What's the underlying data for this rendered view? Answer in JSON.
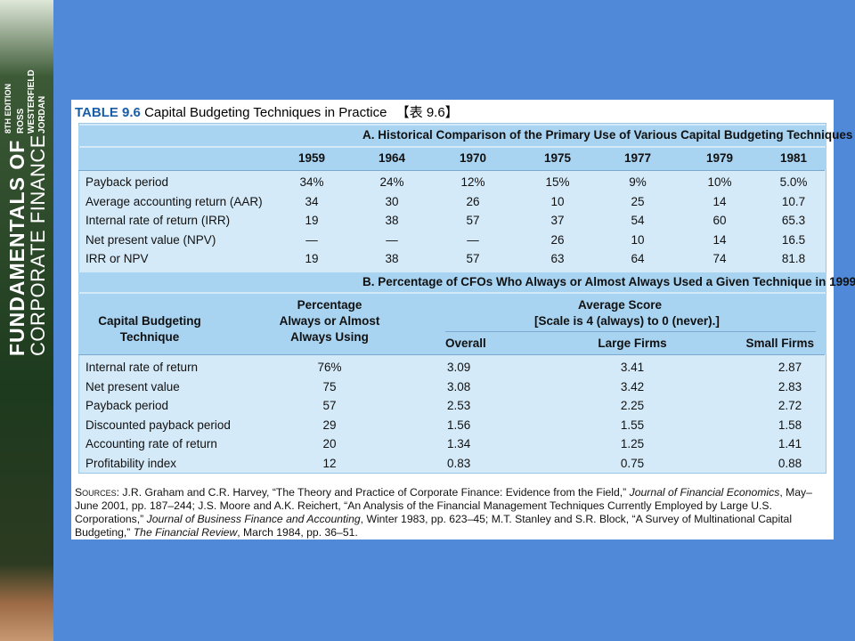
{
  "sidebar": {
    "title1": "FUNDAMENTALS OF",
    "title2": "CORPORATE FINANCE",
    "edition": "8TH EDITION",
    "authors": [
      "ROSS",
      "WESTERFIELD",
      "JORDAN"
    ]
  },
  "table": {
    "label": "TABLE 9.6",
    "title": "Capital Budgeting Techniques in Practice",
    "tag": "【表 9.6】",
    "section_a": {
      "heading": "A. Historical Comparison of the Primary Use of Various Capital Budgeting Techniques",
      "years": [
        "1959",
        "1964",
        "1970",
        "1975",
        "1977",
        "1979",
        "1981"
      ],
      "rows": [
        [
          "Payback period",
          "34%",
          "24%",
          "12%",
          "15%",
          "9%",
          "10%",
          "5.0%"
        ],
        [
          "Average accounting return (AAR)",
          "34",
          "30",
          "26",
          "10",
          "25",
          "14",
          "10.7"
        ],
        [
          "Internal rate of return (IRR)",
          "19",
          "38",
          "57",
          "37",
          "54",
          "60",
          "65.3"
        ],
        [
          "Net present value (NPV)",
          "—",
          "—",
          "—",
          "26",
          "10",
          "14",
          "16.5"
        ],
        [
          "IRR or NPV",
          "19",
          "38",
          "57",
          "63",
          "64",
          "74",
          "81.8"
        ]
      ]
    },
    "section_b": {
      "heading": "B. Percentage of CFOs Who Always or Almost Always Used a Given Technique in 1999",
      "col1": [
        "Capital Budgeting",
        "Technique"
      ],
      "col2": [
        "Percentage",
        "Always or Almost",
        "Always Using"
      ],
      "avg": "Average Score",
      "scale": "[Scale is 4 (always) to 0 (never).]",
      "sub": [
        "Overall",
        "Large Firms",
        "Small Firms"
      ],
      "rows": [
        [
          "Internal rate of return",
          "76%",
          "3.09",
          "3.41",
          "2.87"
        ],
        [
          "Net present value",
          "75",
          "3.08",
          "3.42",
          "2.83"
        ],
        [
          "Payback period",
          "57",
          "2.53",
          "2.25",
          "2.72"
        ],
        [
          "Discounted payback period",
          "29",
          "1.56",
          "1.55",
          "1.58"
        ],
        [
          "Accounting rate of return",
          "20",
          "1.34",
          "1.25",
          "1.41"
        ],
        [
          "Profitability index",
          "12",
          "0.83",
          "0.75",
          "0.88"
        ]
      ]
    }
  },
  "sources": [
    "Sources:",
    " J.R. Graham and C.R. Harvey, “The Theory and Practice of Corporate Finance: Evidence from the Field,” ",
    "Journal of Financial Economics",
    ", May–June 2001, pp. 187–244; J.S. Moore and A.K. Reichert, “An Analysis of the Financial Management Techniques Currently Employed by Large U.S. Corporations,” ",
    "Journal of Business Finance and Accounting",
    ", Winter 1983, pp. 623–45; M.T. Stanley and S.R. Block, “A Survey of Multinational Capital Budgeting,” ",
    "The Financial Review",
    ", March 1984, pp. 36–51."
  ]
}
